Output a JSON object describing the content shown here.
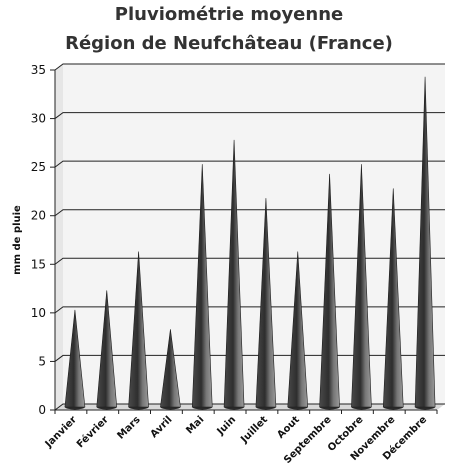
{
  "chart_data": {
    "type": "bar",
    "title_line1": "Pluviométrie moyenne",
    "title_line2": "Région de Neufchâteau (France)",
    "xlabel": "",
    "ylabel": "mm de pluie",
    "ylim": [
      0,
      35
    ],
    "yticks": [
      "0",
      "5",
      "10",
      "15",
      "20",
      "25",
      "30",
      "35"
    ],
    "categories": [
      "Janvier",
      "Février",
      "Mars",
      "Avril",
      "Mai",
      "Juin",
      "Juillet",
      "Aout",
      "Septembre",
      "Octobre",
      "Novembre",
      "Décembre"
    ],
    "values": [
      10,
      12,
      16,
      8,
      25,
      27.5,
      21.5,
      16,
      24,
      25,
      22.5,
      34
    ],
    "bar_shape": "cone",
    "grid": true,
    "legend": "none",
    "colors": {
      "bar": "#3a3a3a",
      "bar_highlight": "#8a8a8a",
      "grid": "#222222",
      "wall": "#f4f4f4",
      "title": "#333333"
    }
  }
}
